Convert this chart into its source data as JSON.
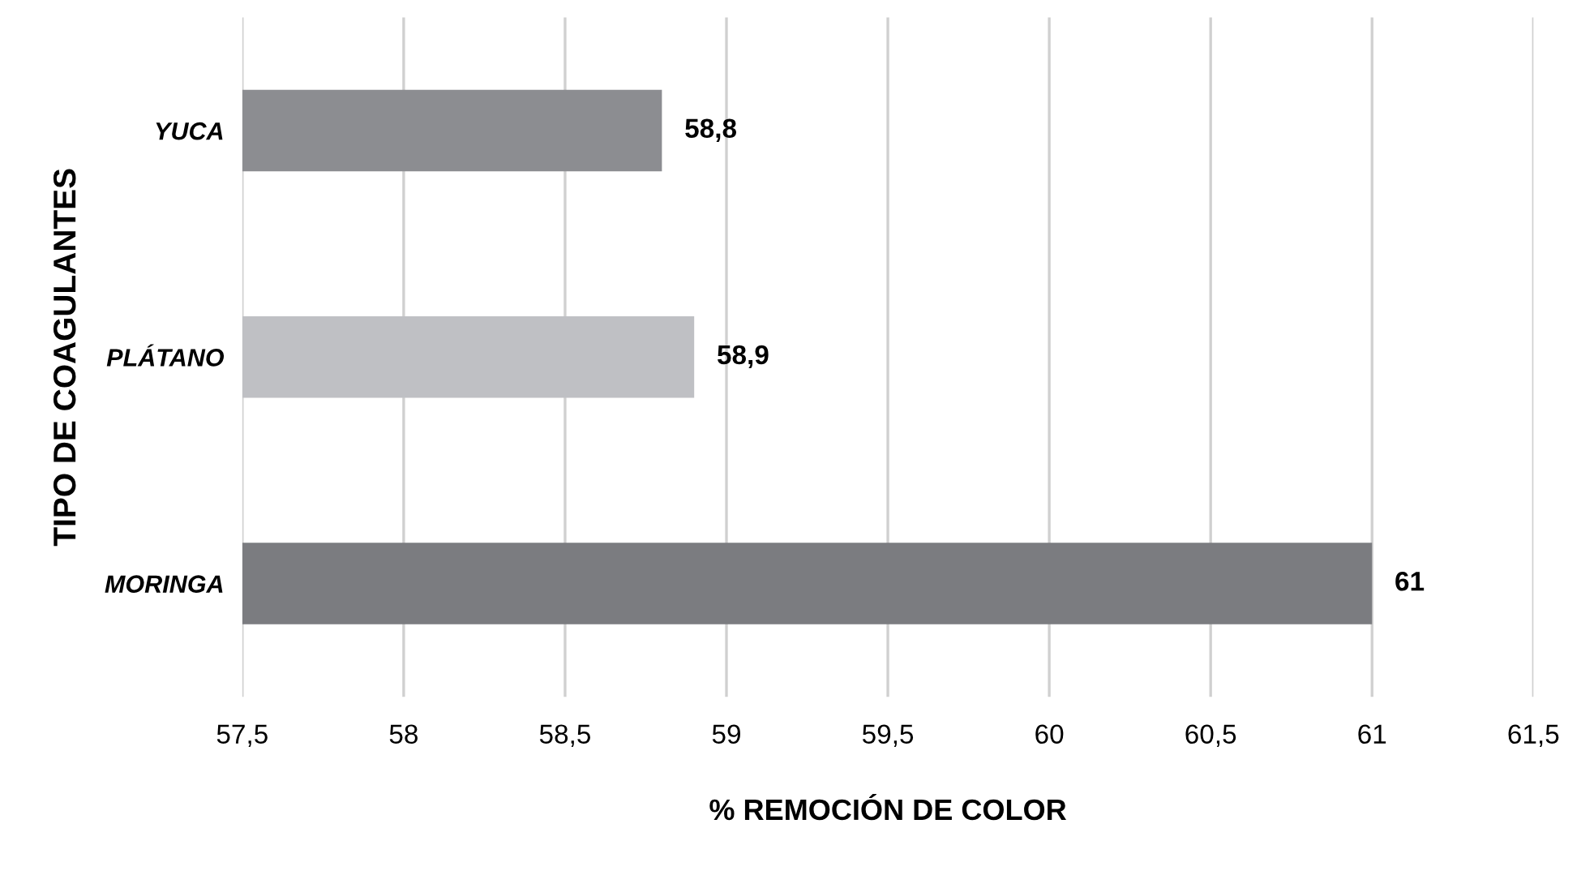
{
  "chart_data": {
    "type": "bar",
    "orientation": "horizontal",
    "xlabel": "% REMOCIÓN DE COLOR",
    "ylabel": "TIPO DE COAGULANTES",
    "categories": [
      "YUCA",
      "PLÁTANO",
      "MORINGA"
    ],
    "values": [
      58.8,
      58.9,
      61
    ],
    "colors": [
      "#8c8d91",
      "#bfc0c4",
      "#7b7c80"
    ],
    "value_labels": [
      "58,8",
      "58,9",
      "61"
    ],
    "xlim": [
      57.5,
      61.5
    ],
    "xticks": [
      {
        "value": 57.5,
        "label": "57,5"
      },
      58,
      {
        "value": 58.5,
        "label": "58,5"
      },
      59,
      {
        "value": 59.5,
        "label": "59,5"
      },
      60,
      {
        "value": 60.5,
        "label": "60,5"
      },
      61,
      {
        "value": 61.5,
        "label": "61,5"
      }
    ],
    "grid": "x",
    "legend": false
  }
}
